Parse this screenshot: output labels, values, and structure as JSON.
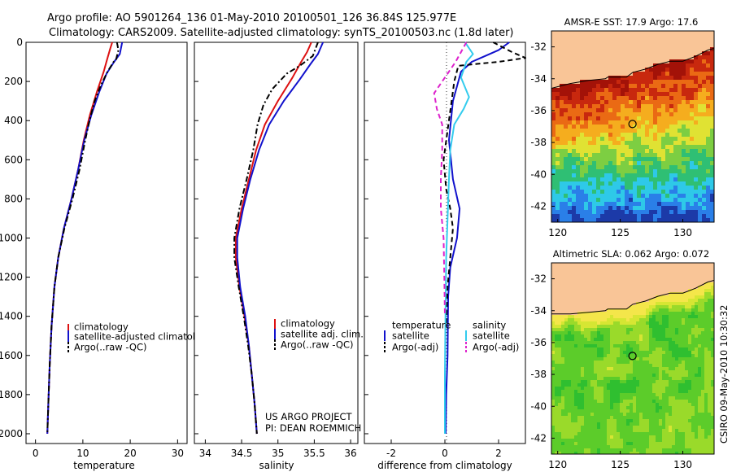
{
  "header": {
    "title_line1": "Argo profile: AO 5901264_136 01-May-2010 20100501_126 36.84S 125.977E",
    "title_line2": "Climatology: CARS2009. Satellite-adjusted climatology: synTS_20100503.nc (1.8d later)"
  },
  "credits": {
    "project": "US ARGO PROJECT",
    "pi": "PI: DEAN ROEMMICH",
    "side_stamp": "CSIRO 09-May-2010 10:30:32"
  },
  "colors": {
    "climatology": "#dd1111",
    "satellite": "#1111cc",
    "argo": "#000000",
    "satellite_diff_sal": "#33ccee",
    "argo_diff_sal": "#dd22cc",
    "land": "#f9c597"
  },
  "chart_data": [
    {
      "id": "temperature",
      "type": "line",
      "xlabel": "temperature",
      "ylabel": "",
      "xlim": [
        -2,
        32
      ],
      "ylim": [
        2050,
        0
      ],
      "x_ticks": [
        "0",
        "10",
        "20",
        "30"
      ],
      "y_ticks": [
        "0",
        "200",
        "400",
        "600",
        "800",
        "1000",
        "1200",
        "1400",
        "1600",
        "1800",
        "2000"
      ],
      "legend": [
        "climatology",
        "satellite-adjusted climatology",
        "Argo(..raw -QC)"
      ],
      "series": [
        {
          "name": "climatology",
          "style": "solid",
          "color_key": "climatology",
          "points": [
            [
              16.2,
              0
            ],
            [
              15.8,
              30
            ],
            [
              15.2,
              80
            ],
            [
              14.4,
              150
            ],
            [
              13.0,
              250
            ],
            [
              11.5,
              370
            ],
            [
              10.2,
              500
            ],
            [
              9.0,
              650
            ],
            [
              7.6,
              800
            ],
            [
              6.0,
              950
            ],
            [
              4.8,
              1100
            ],
            [
              4.0,
              1250
            ],
            [
              3.4,
              1450
            ],
            [
              3.0,
              1650
            ],
            [
              2.7,
              1850
            ],
            [
              2.5,
              2000
            ]
          ]
        },
        {
          "name": "satellite-adjusted climatology",
          "style": "solid",
          "color_key": "satellite",
          "points": [
            [
              18.3,
              0
            ],
            [
              17.8,
              60
            ],
            [
              16.6,
              100
            ],
            [
              15.0,
              160
            ],
            [
              13.5,
              250
            ],
            [
              11.8,
              370
            ],
            [
              10.3,
              500
            ],
            [
              9.0,
              650
            ],
            [
              7.6,
              800
            ],
            [
              6.0,
              950
            ],
            [
              4.8,
              1100
            ],
            [
              4.0,
              1250
            ],
            [
              3.4,
              1450
            ],
            [
              3.0,
              1650
            ],
            [
              2.7,
              1850
            ],
            [
              2.5,
              2000
            ]
          ]
        },
        {
          "name": "Argo(..raw -QC)",
          "style": "dashdot",
          "color_key": "argo",
          "points": [
            [
              17.2,
              0
            ],
            [
              17.5,
              40
            ],
            [
              17.0,
              90
            ],
            [
              16.5,
              100
            ],
            [
              15.2,
              150
            ],
            [
              13.8,
              220
            ],
            [
              12.5,
              300
            ],
            [
              11.4,
              400
            ],
            [
              10.5,
              500
            ],
            [
              9.3,
              650
            ],
            [
              7.8,
              800
            ],
            [
              6.1,
              950
            ],
            [
              4.8,
              1100
            ],
            [
              4.0,
              1250
            ],
            [
              3.4,
              1450
            ],
            [
              3.0,
              1650
            ],
            [
              2.7,
              1850
            ],
            [
              2.5,
              2000
            ]
          ]
        }
      ]
    },
    {
      "id": "salinity",
      "type": "line",
      "xlabel": "salinity",
      "ylabel": "",
      "xlim": [
        33.85,
        36.1
      ],
      "ylim": [
        2050,
        0
      ],
      "x_ticks": [
        "34",
        "34.5",
        "35",
        "35.5",
        "36"
      ],
      "legend": [
        "climatology",
        "satellite adj. clim.",
        "Argo(..raw -QC)"
      ],
      "series": [
        {
          "name": "climatology",
          "style": "solid",
          "color_key": "climatology",
          "points": [
            [
              35.46,
              0
            ],
            [
              35.4,
              50
            ],
            [
              35.32,
              100
            ],
            [
              35.2,
              180
            ],
            [
              35.0,
              300
            ],
            [
              34.82,
              420
            ],
            [
              34.7,
              550
            ],
            [
              34.6,
              700
            ],
            [
              34.5,
              850
            ],
            [
              34.42,
              1000
            ],
            [
              34.42,
              1100
            ],
            [
              34.47,
              1250
            ],
            [
              34.54,
              1400
            ],
            [
              34.6,
              1550
            ],
            [
              34.64,
              1700
            ],
            [
              34.68,
              1850
            ],
            [
              34.71,
              2000
            ]
          ]
        },
        {
          "name": "satellite adj. clim.",
          "style": "solid",
          "color_key": "satellite",
          "points": [
            [
              35.62,
              0
            ],
            [
              35.55,
              60
            ],
            [
              35.45,
              110
            ],
            [
              35.3,
              190
            ],
            [
              35.08,
              300
            ],
            [
              34.88,
              420
            ],
            [
              34.74,
              550
            ],
            [
              34.62,
              700
            ],
            [
              34.52,
              850
            ],
            [
              34.44,
              1000
            ],
            [
              34.44,
              1100
            ],
            [
              34.48,
              1250
            ],
            [
              34.55,
              1400
            ],
            [
              34.6,
              1550
            ],
            [
              34.64,
              1700
            ],
            [
              34.68,
              1850
            ],
            [
              34.71,
              2000
            ]
          ]
        },
        {
          "name": "Argo(..raw -QC)",
          "style": "dashdot",
          "color_key": "argo",
          "points": [
            [
              35.55,
              0
            ],
            [
              35.48,
              70
            ],
            [
              35.3,
              120
            ],
            [
              35.12,
              160
            ],
            [
              34.92,
              240
            ],
            [
              34.8,
              320
            ],
            [
              34.72,
              420
            ],
            [
              34.66,
              550
            ],
            [
              34.57,
              700
            ],
            [
              34.47,
              850
            ],
            [
              34.4,
              1000
            ],
            [
              34.4,
              1100
            ],
            [
              34.46,
              1250
            ],
            [
              34.53,
              1400
            ],
            [
              34.59,
              1550
            ],
            [
              34.64,
              1700
            ],
            [
              34.68,
              1850
            ],
            [
              34.71,
              2000
            ]
          ]
        }
      ]
    },
    {
      "id": "difference",
      "type": "line",
      "xlabel": "difference from climatology",
      "ylabel": "",
      "xlim": [
        -3,
        3
      ],
      "ylim": [
        2050,
        0
      ],
      "x_ticks": [
        "-2",
        "0",
        "2"
      ],
      "legend_headers": [
        "temperature",
        "salinity"
      ],
      "legend": [
        "satellite",
        "Argo(-adj)",
        "satellite",
        "Argo(-adj)"
      ],
      "series": [
        {
          "name": "satellite",
          "group": "temperature",
          "style": "solid",
          "color_key": "satellite",
          "points": [
            [
              2.4,
              0
            ],
            [
              2.0,
              40
            ],
            [
              1.5,
              70
            ],
            [
              1.0,
              100
            ],
            [
              0.6,
              150
            ],
            [
              0.3,
              300
            ],
            [
              0.15,
              500
            ],
            [
              0.3,
              700
            ],
            [
              0.55,
              850
            ],
            [
              0.45,
              1000
            ],
            [
              0.2,
              1150
            ],
            [
              0.12,
              1300
            ],
            [
              0.1,
              1600
            ],
            [
              0.05,
              1800
            ],
            [
              0.03,
              2000
            ]
          ]
        },
        {
          "name": "Argo(-adj)",
          "group": "temperature",
          "style": "dashed",
          "color_key": "argo",
          "points": [
            [
              1.8,
              0
            ],
            [
              2.5,
              50
            ],
            [
              3.0,
              80
            ],
            [
              2.0,
              100
            ],
            [
              1.2,
              110
            ],
            [
              0.5,
              120
            ],
            [
              0.35,
              200
            ],
            [
              0.25,
              300
            ],
            [
              0.1,
              450
            ],
            [
              -0.05,
              600
            ],
            [
              0.05,
              750
            ],
            [
              0.2,
              850
            ],
            [
              0.3,
              950
            ],
            [
              0.2,
              1100
            ],
            [
              0.1,
              1250
            ],
            [
              0.05,
              1450
            ]
          ]
        },
        {
          "name": "satellite",
          "group": "salinity",
          "style": "solid",
          "color_key": "satellite_diff_sal",
          "points": [
            [
              0.75,
              0
            ],
            [
              1.05,
              60
            ],
            [
              0.8,
              100
            ],
            [
              0.6,
              180
            ],
            [
              0.9,
              280
            ],
            [
              0.7,
              340
            ],
            [
              0.35,
              420
            ],
            [
              0.2,
              550
            ],
            [
              0.15,
              700
            ],
            [
              0.1,
              900
            ],
            [
              0.05,
              1100
            ],
            [
              0.02,
              1400
            ],
            [
              0.0,
              1700
            ],
            [
              0.0,
              2000
            ]
          ]
        },
        {
          "name": "Argo(-adj)",
          "group": "salinity",
          "style": "dashed",
          "color_key": "argo_diff_sal",
          "points": [
            [
              0.8,
              0
            ],
            [
              0.6,
              50
            ],
            [
              0.4,
              100
            ],
            [
              0.1,
              160
            ],
            [
              -0.4,
              260
            ],
            [
              -0.3,
              340
            ],
            [
              -0.1,
              420
            ],
            [
              -0.1,
              550
            ],
            [
              -0.15,
              700
            ],
            [
              -0.15,
              850
            ],
            [
              -0.05,
              1000
            ],
            [
              -0.02,
              1200
            ],
            [
              0.0,
              1400
            ]
          ]
        }
      ]
    },
    {
      "id": "sst_map",
      "type": "heatmap",
      "title": "AMSR-E SST: 17.9 Argo: 17.6",
      "xlim": [
        119.5,
        132.5
      ],
      "ylim": [
        -43,
        -31
      ],
      "x_ticks": [
        "120",
        "125",
        "130"
      ],
      "y_ticks": [
        "-32",
        "-34",
        "-36",
        "-38",
        "-40",
        "-42"
      ],
      "argo_position": [
        125.977,
        -36.84
      ],
      "coastline": [
        [
          119.5,
          -34.6
        ],
        [
          121,
          -34.3
        ],
        [
          122.5,
          -34.1
        ],
        [
          123.8,
          -34.0
        ],
        [
          124,
          -33.9
        ],
        [
          125.5,
          -33.9
        ],
        [
          126,
          -33.6
        ],
        [
          127,
          -33.4
        ],
        [
          128,
          -33.1
        ],
        [
          129,
          -32.9
        ],
        [
          130,
          -32.9
        ],
        [
          131,
          -32.6
        ],
        [
          132,
          -32.2
        ],
        [
          132.5,
          -32.1
        ]
      ],
      "palette": [
        "#1c3aa8",
        "#2a7fe8",
        "#2ec9e8",
        "#2fbf74",
        "#7dce42",
        "#e0e233",
        "#f5ad1e",
        "#ea6a14",
        "#c8280e",
        "#a31208"
      ]
    },
    {
      "id": "sla_map",
      "type": "heatmap",
      "title": "Altimetric SLA: 0.062 Argo: 0.072",
      "xlim": [
        119.5,
        132.5
      ],
      "ylim": [
        -43,
        -31
      ],
      "x_ticks": [
        "120",
        "125",
        "130"
      ],
      "y_ticks": [
        "-32",
        "-34",
        "-36",
        "-38",
        "-40",
        "-42"
      ],
      "argo_position": [
        125.977,
        -36.84
      ],
      "coastline": [
        [
          119.5,
          -34.2
        ],
        [
          121,
          -34.2
        ],
        [
          122.5,
          -34.1
        ],
        [
          123.8,
          -34.0
        ],
        [
          124,
          -33.9
        ],
        [
          125.5,
          -33.9
        ],
        [
          126,
          -33.6
        ],
        [
          127,
          -33.4
        ],
        [
          128,
          -33.1
        ],
        [
          129,
          -32.9
        ],
        [
          130,
          -32.9
        ],
        [
          131,
          -32.6
        ],
        [
          132,
          -32.2
        ],
        [
          132.5,
          -32.1
        ]
      ],
      "palette": [
        "#2fbf30",
        "#5ccc2a",
        "#9ada2a",
        "#d6e633",
        "#f4e64a"
      ]
    }
  ]
}
